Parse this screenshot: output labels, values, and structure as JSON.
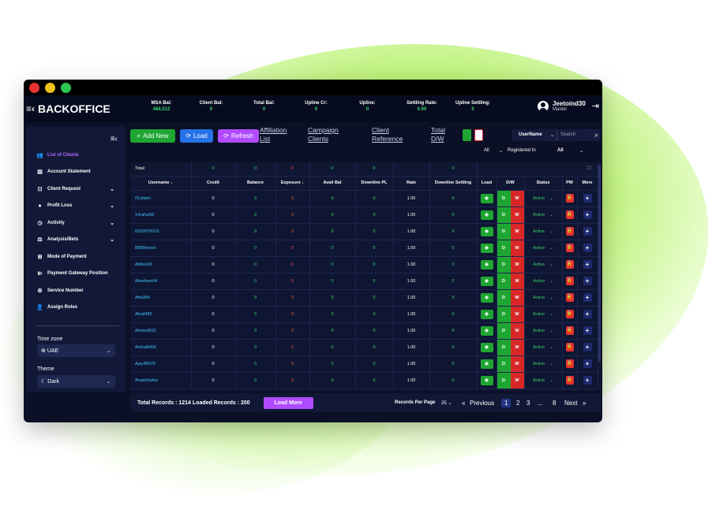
{
  "window": {
    "dots": [
      "#e63232",
      "#f0c419",
      "#2dc653"
    ]
  },
  "brand": {
    "title": "BACKOFFICE"
  },
  "stats": [
    {
      "label": "MSA Bal:",
      "value": "488,512"
    },
    {
      "label": "Client Bal:",
      "value": "0"
    },
    {
      "label": "Total Bal:",
      "value": "0"
    },
    {
      "label": "Upline Cr:",
      "value": "0"
    },
    {
      "label": "Upline:",
      "value": "0"
    },
    {
      "label": "Settling Rate:",
      "value": "0.00"
    },
    {
      "label": "Upline Settling:",
      "value": "0"
    }
  ],
  "user": {
    "name": "Jeetoind30",
    "role": "Master"
  },
  "sidebar": {
    "items": [
      {
        "label": "List of Clients",
        "icon": "users-icon",
        "active": true
      },
      {
        "label": "Account Statement",
        "icon": "document-icon"
      },
      {
        "label": "Client Request",
        "icon": "request-icon",
        "chev": true
      },
      {
        "label": "Profit Loss",
        "icon": "profit-icon",
        "chev": true
      },
      {
        "label": "Activity",
        "icon": "clock-icon",
        "chev": true
      },
      {
        "label": "Analysis/Bets",
        "icon": "analysis-icon",
        "chev": true
      },
      {
        "label": "Mode of Payment",
        "icon": "grid-icon"
      },
      {
        "label": "Payment Gateway Position",
        "icon": "gateway-icon"
      },
      {
        "label": "Service Number",
        "icon": "gear-icon"
      },
      {
        "label": "Assign Roles",
        "icon": "roles-icon"
      }
    ],
    "timezone_label": "Time zone",
    "timezone_value": "UAE",
    "theme_label": "Theme",
    "theme_value": "Dark"
  },
  "toolbar": {
    "add_new": "Add New",
    "load": "Load",
    "refresh": "Refresh",
    "links": [
      "Affiliation List",
      "Campaign Clients",
      "Client Reference",
      "Total D/W"
    ],
    "search_by": "UserName",
    "search_placeholder": "Search",
    "filter_all_1": "All",
    "filter_registered": "Registered In",
    "filter_all_2": "All"
  },
  "table": {
    "headers": [
      "Username ↓",
      "Credit",
      "Balance",
      "Exposure ↓",
      "Avail Bal",
      "Downline PL",
      "Rate",
      "Downline Settling",
      "Load",
      "D/W",
      "Status",
      "PW",
      "More"
    ],
    "total_label": "Total:",
    "totals": [
      "0",
      "0",
      "0",
      "0",
      "0",
      "",
      "0"
    ],
    "rows": [
      {
        "username": "01uttam",
        "credit": "0",
        "balance": "0",
        "exposure": "0",
        "avail": "0",
        "downline_pl": "0",
        "rate": "1.00",
        "settling": "0",
        "d": "D",
        "w": "W",
        "status": "Active"
      },
      {
        "username": "14rahul56",
        "credit": "0",
        "balance": "0",
        "exposure": "0",
        "avail": "0",
        "downline_pl": "0",
        "rate": "1.00",
        "settling": "0",
        "d": "D",
        "w": "W",
        "status": "Active"
      },
      {
        "username": "6200870015",
        "credit": "0",
        "balance": "0",
        "exposure": "0",
        "avail": "0",
        "downline_pl": "0",
        "rate": "1.00",
        "settling": "0",
        "d": "D",
        "w": "W",
        "status": "Active"
      },
      {
        "username": "8895hivam",
        "credit": "0",
        "balance": "0",
        "exposure": "0",
        "avail": "0",
        "downline_pl": "0",
        "rate": "1.00",
        "settling": "0",
        "d": "D",
        "w": "W",
        "status": "Active"
      },
      {
        "username": "Abbas99",
        "credit": "0",
        "balance": "0",
        "exposure": "0",
        "avail": "0",
        "downline_pl": "0",
        "rate": "1.00",
        "settling": "0",
        "d": "D",
        "w": "W",
        "status": "Active"
      },
      {
        "username": "Abraham04",
        "credit": "0",
        "balance": "0",
        "exposure": "0",
        "avail": "0",
        "downline_pl": "0",
        "rate": "1.00",
        "settling": "0",
        "d": "D",
        "w": "W",
        "status": "Active"
      },
      {
        "username": "Afta384",
        "credit": "0",
        "balance": "0",
        "exposure": "0",
        "avail": "0",
        "downline_pl": "0",
        "rate": "1.00",
        "settling": "0",
        "d": "D",
        "w": "W",
        "status": "Active"
      },
      {
        "username": "Afzal495",
        "credit": "0",
        "balance": "0",
        "exposure": "0",
        "avail": "0",
        "downline_pl": "0",
        "rate": "1.00",
        "settling": "0",
        "d": "D",
        "w": "W",
        "status": "Active"
      },
      {
        "username": "Ahmed503",
        "credit": "0",
        "balance": "0",
        "exposure": "0",
        "avail": "0",
        "downline_pl": "0",
        "rate": "1.00",
        "settling": "0",
        "d": "D",
        "w": "W",
        "status": "Active"
      },
      {
        "username": "Aishal6066",
        "credit": "0",
        "balance": "0",
        "exposure": "0",
        "avail": "0",
        "downline_pl": "0",
        "rate": "1.00",
        "settling": "0",
        "d": "D",
        "w": "W",
        "status": "Active"
      },
      {
        "username": "Ajay45678",
        "credit": "0",
        "balance": "0",
        "exposure": "0",
        "avail": "0",
        "downline_pl": "0",
        "rate": "1.00",
        "settling": "0",
        "d": "D",
        "w": "W",
        "status": "Active"
      },
      {
        "username": "Anasbhaiha",
        "credit": "0",
        "balance": "0",
        "exposure": "0",
        "avail": "0",
        "downline_pl": "0",
        "rate": "1.00",
        "settling": "0",
        "d": "D",
        "w": "W",
        "status": "Active"
      }
    ]
  },
  "footer": {
    "totals_text": "Total Records : 1214  Loaded Records : 200",
    "load_more": "Load More",
    "records_per_page": "Records Per Page",
    "per_page_value": "25",
    "first": "«",
    "previous": "Previous",
    "pages": [
      "1",
      "2",
      "3",
      "...",
      "8"
    ],
    "next": "Next",
    "last": "»"
  }
}
